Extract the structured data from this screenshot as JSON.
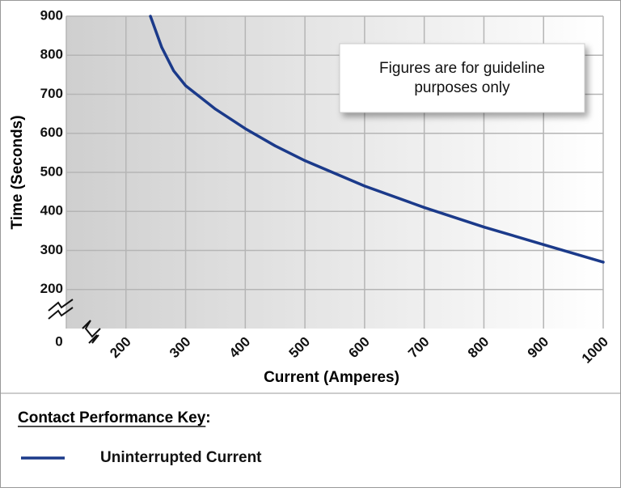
{
  "chart_data": {
    "type": "line",
    "x_label": "Current (Amperes)",
    "y_label": "Time (Seconds)",
    "origin_label": "0",
    "annotation": "Figures are for guideline purposes only",
    "x": [
      241,
      260,
      280,
      300,
      350,
      400,
      450,
      500,
      600,
      700,
      800,
      900,
      1000
    ],
    "series": [
      {
        "name": "Uninterrupted Current",
        "color": "#1b3a8a",
        "values": [
          900,
          820,
          760,
          722,
          662,
          612,
          568,
          530,
          465,
          410,
          360,
          315,
          270
        ]
      }
    ],
    "xlim": [
      100,
      1000
    ],
    "ylim": [
      100,
      900
    ],
    "xticks": [
      200,
      300,
      400,
      500,
      600,
      700,
      800,
      900,
      1000
    ],
    "yticks": [
      200,
      300,
      400,
      500,
      600,
      700,
      800,
      900
    ],
    "grid": true,
    "legend_title": "Contact Performance Key:"
  }
}
